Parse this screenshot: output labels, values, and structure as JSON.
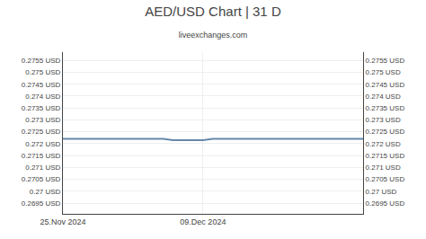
{
  "chart_data": {
    "type": "line",
    "title": "AED/USD Chart | 31 D",
    "subtitle": "liveexchanges.com",
    "categories": [
      "25.Nov 2024",
      null,
      null,
      null,
      null,
      null,
      null,
      null,
      null,
      null,
      null,
      null,
      null,
      null,
      "09.Dec 2024",
      null,
      null,
      null,
      null,
      null,
      null,
      null,
      null,
      null,
      null,
      null,
      null,
      null,
      null,
      null,
      null
    ],
    "values": [
      0.2722,
      0.2722,
      0.2722,
      0.2722,
      0.2722,
      0.2722,
      0.2722,
      0.2722,
      0.2722,
      0.2722,
      0.2722,
      0.27215,
      0.27215,
      0.27215,
      0.27215,
      0.2722,
      0.2722,
      0.2722,
      0.2722,
      0.2722,
      0.2722,
      0.2722,
      0.2722,
      0.2722,
      0.2722,
      0.2722,
      0.2722,
      0.2722,
      0.2722,
      0.2722,
      0.2722
    ],
    "color": "#6688aa",
    "ylim": [
      0.26905,
      0.27585
    ],
    "yticks": [
      {
        "value": 0.2695,
        "label": "0.2695 USD"
      },
      {
        "value": 0.27,
        "label": "0.27 USD"
      },
      {
        "value": 0.2705,
        "label": "0.2705 USD"
      },
      {
        "value": 0.271,
        "label": "0.271 USD"
      },
      {
        "value": 0.2715,
        "label": "0.2715 USD"
      },
      {
        "value": 0.272,
        "label": "0.272 USD"
      },
      {
        "value": 0.2725,
        "label": "0.2725 USD"
      },
      {
        "value": 0.273,
        "label": "0.273 USD"
      },
      {
        "value": 0.2735,
        "label": "0.2735 USD"
      },
      {
        "value": 0.274,
        "label": "0.274 USD"
      },
      {
        "value": 0.2745,
        "label": "0.2745 USD"
      },
      {
        "value": 0.275,
        "label": "0.275 USD"
      },
      {
        "value": 0.2755,
        "label": "0.2755 USD"
      }
    ],
    "y2lim": [
      0.26905,
      0.27585
    ],
    "y2ticks": [
      {
        "value": 0.2695,
        "label": "0.2695 USD"
      },
      {
        "value": 0.27,
        "label": "0.27 USD"
      },
      {
        "value": 0.2705,
        "label": "0.2705 USD"
      },
      {
        "value": 0.271,
        "label": "0.271 USD"
      },
      {
        "value": 0.2715,
        "label": "0.2715 USD"
      },
      {
        "value": 0.272,
        "label": "0.272 USD"
      },
      {
        "value": 0.2725,
        "label": "0.2725 USD"
      },
      {
        "value": 0.273,
        "label": "0.273 USD"
      },
      {
        "value": 0.2735,
        "label": "0.2735 USD"
      },
      {
        "value": 0.274,
        "label": "0.274 USD"
      },
      {
        "value": 0.2745,
        "label": "0.2745 USD"
      },
      {
        "value": 0.275,
        "label": "0.275 USD"
      },
      {
        "value": 0.2755,
        "label": "0.2755 USD"
      }
    ],
    "grid": true
  }
}
